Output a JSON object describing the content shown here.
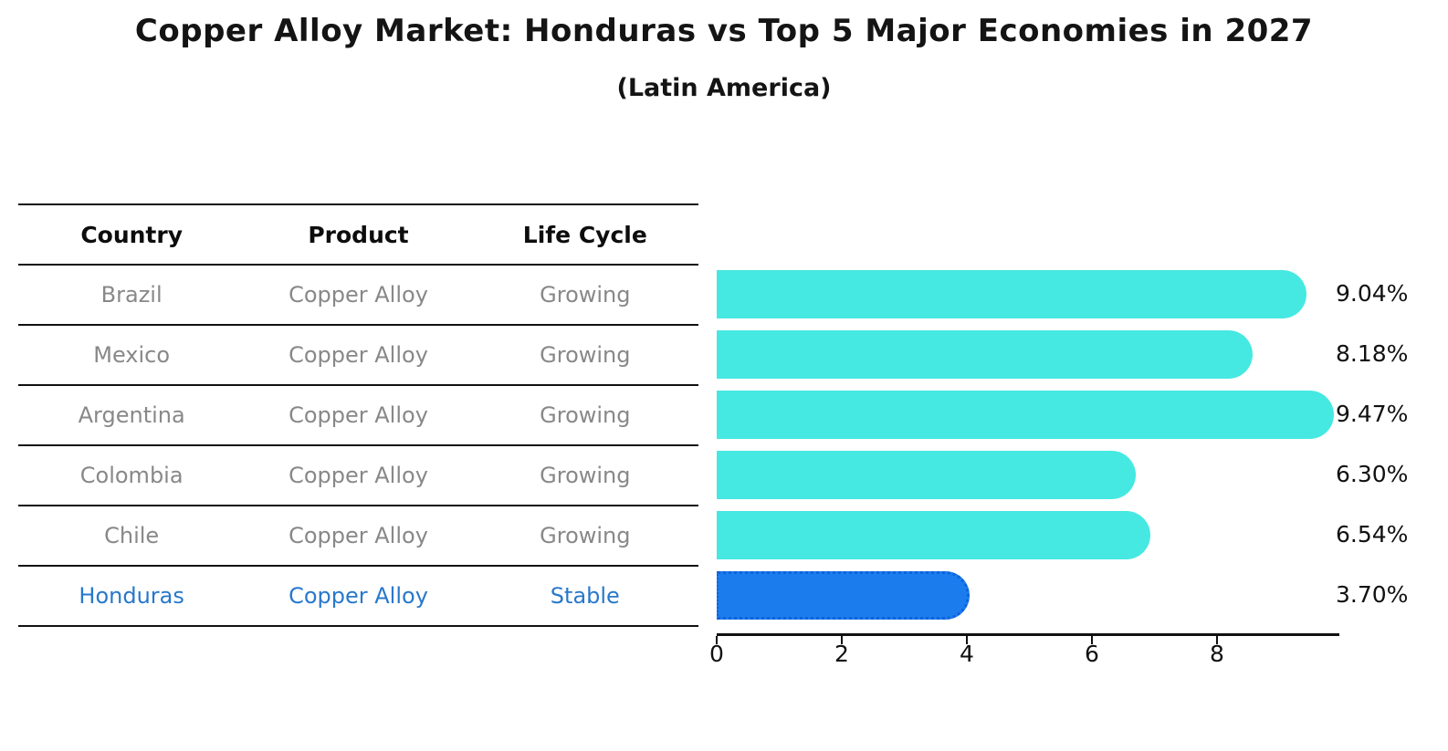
{
  "title": "Copper Alloy Market: Honduras vs Top 5 Major Economies in 2027",
  "subtitle": "(Latin America)",
  "table": {
    "headers": [
      "Country",
      "Product",
      "Life Cycle"
    ],
    "rows": [
      {
        "country": "Brazil",
        "product": "Copper Alloy",
        "life_cycle": "Growing"
      },
      {
        "country": "Mexico",
        "product": "Copper Alloy",
        "life_cycle": "Growing"
      },
      {
        "country": "Argentina",
        "product": "Copper Alloy",
        "life_cycle": "Growing"
      },
      {
        "country": "Colombia",
        "product": "Copper Alloy",
        "life_cycle": "Growing"
      },
      {
        "country": "Chile",
        "product": "Copper Alloy",
        "life_cycle": "Growing"
      },
      {
        "country": "Honduras",
        "product": "Copper Alloy",
        "life_cycle": "Stable"
      }
    ],
    "highlighted_country": "Honduras"
  },
  "chart_data": {
    "type": "bar",
    "orientation": "horizontal",
    "title": "Copper Alloy Market: Honduras vs Top 5 Major Economies in 2027",
    "subtitle": "(Latin America)",
    "categories": [
      "Brazil",
      "Mexico",
      "Argentina",
      "Colombia",
      "Chile",
      "Honduras"
    ],
    "values": [
      9.04,
      8.18,
      9.47,
      6.3,
      6.54,
      3.7
    ],
    "value_labels": [
      "9.04%",
      "8.18%",
      "9.47%",
      "6.30%",
      "6.54%",
      "3.70%"
    ],
    "highlight_index": 5,
    "xticks": [
      "0",
      "2",
      "4",
      "6",
      "8"
    ],
    "xtick_values": [
      0,
      2,
      4,
      6,
      8
    ],
    "xlim": [
      0,
      10
    ],
    "grid": false,
    "legend": "none",
    "colors": {
      "default_bar": "#46E8E2",
      "highlight_bar": "#1B7CED",
      "highlight_text": "#2878CB",
      "row_text": "#888888",
      "axis": "#111111"
    }
  }
}
